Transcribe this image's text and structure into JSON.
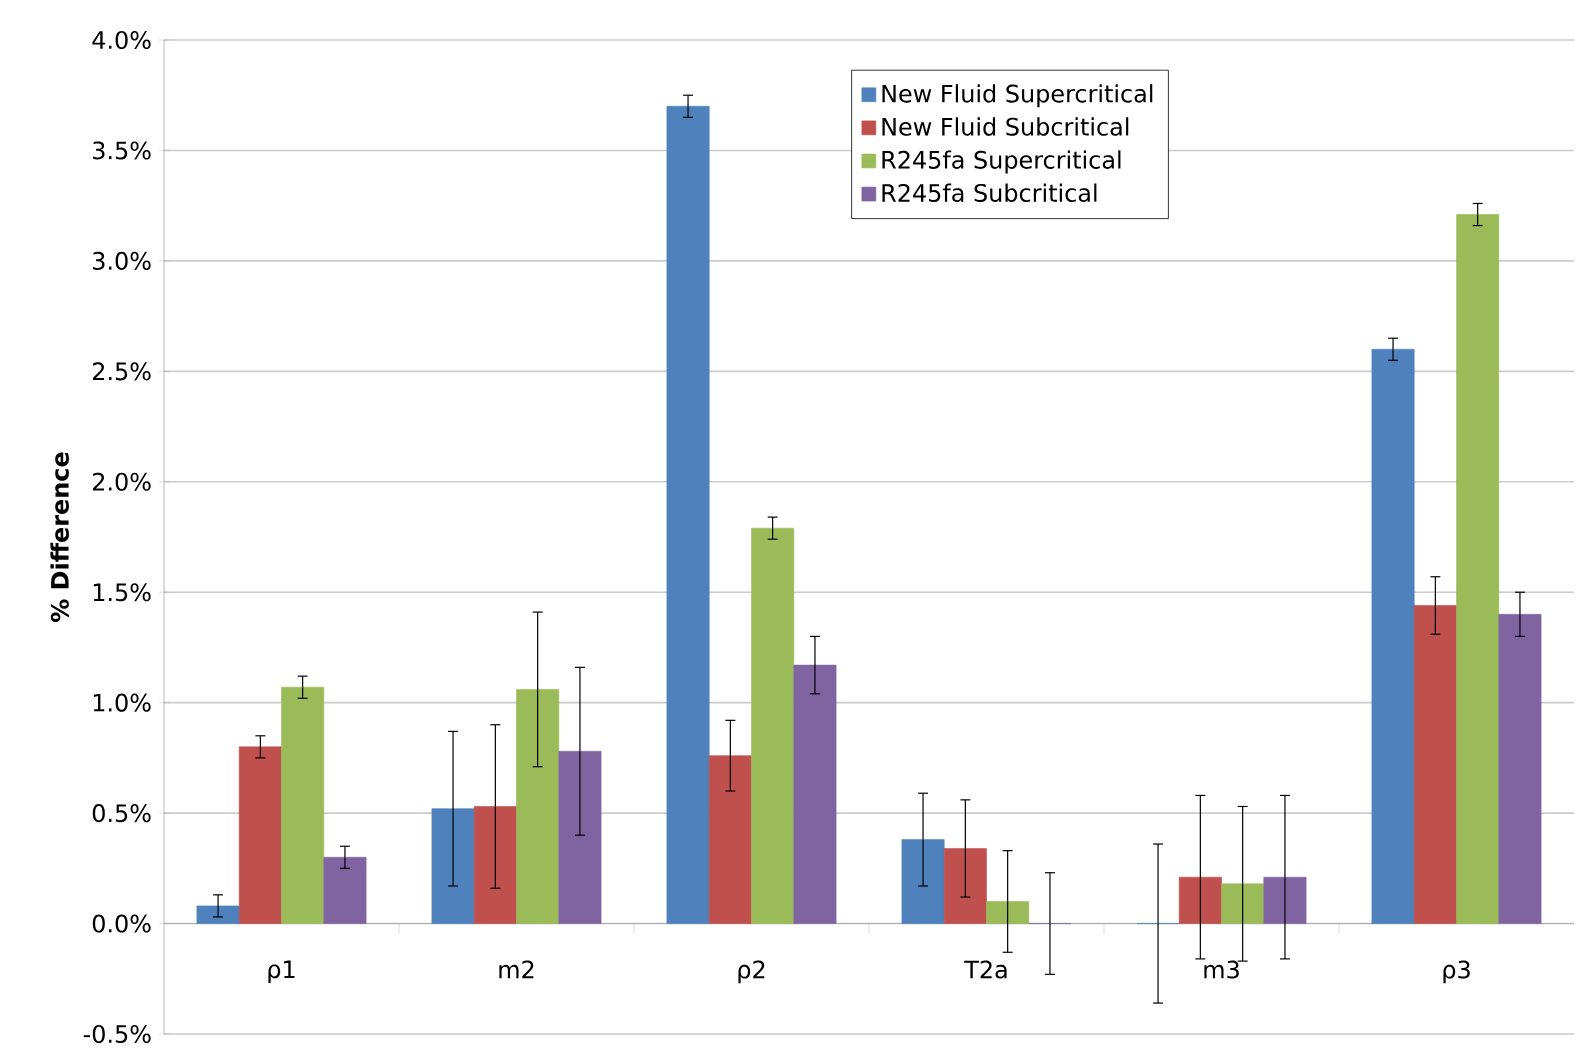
{
  "chart_data": {
    "type": "bar",
    "ylabel": "% Difference",
    "categories": [
      "ρ1",
      "m2",
      "ρ2",
      "T2a",
      "m3",
      "ρ3"
    ],
    "series": [
      {
        "name": "New Fluid Supercritical",
        "color": "#4f81bd",
        "values": [
          0.08,
          0.52,
          3.7,
          0.38,
          0,
          2.6
        ],
        "errors": [
          0.05,
          0.35,
          0.05,
          0.21,
          0.36,
          0.05
        ]
      },
      {
        "name": "New Fluid Subcritical",
        "color": "#c0504d",
        "values": [
          0.8,
          0.53,
          0.76,
          0.34,
          0.21,
          1.44
        ],
        "errors": [
          0.05,
          0.37,
          0.16,
          0.22,
          0.37,
          0.13
        ]
      },
      {
        "name": "R245fa Supercritical",
        "color": "#9bbb59",
        "values": [
          1.07,
          1.06,
          1.79,
          0.1,
          0.18,
          3.21
        ],
        "errors": [
          0.05,
          0.35,
          0.05,
          0.23,
          0.35,
          0.05
        ]
      },
      {
        "name": "R245fa Subcritical",
        "color": "#8064a2",
        "values": [
          0.3,
          0.78,
          1.17,
          0,
          0.21,
          1.4
        ],
        "errors": [
          0.05,
          0.38,
          0.13,
          0.23,
          0.37,
          0.1
        ]
      }
    ],
    "ylim": [
      -0.5,
      4
    ],
    "yticks": [
      {
        "value": -0.5,
        "label": "-0.5%"
      },
      {
        "value": 0,
        "label": "0.0%"
      },
      {
        "value": 0.5,
        "label": "0.5%"
      },
      {
        "value": 1,
        "label": "1.0%"
      },
      {
        "value": 1.5,
        "label": "1.5%"
      },
      {
        "value": 2,
        "label": "2.0%"
      },
      {
        "value": 2.5,
        "label": "2.5%"
      },
      {
        "value": 3,
        "label": "3.0%"
      },
      {
        "value": 3.5,
        "label": "3.5%"
      },
      {
        "value": 4,
        "label": "4.0%"
      }
    ],
    "grid": "y",
    "legend": "top"
  }
}
